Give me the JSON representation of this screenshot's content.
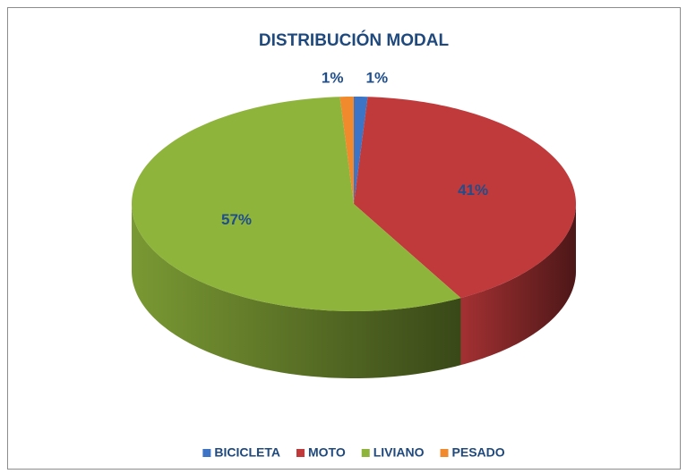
{
  "chart_data": {
    "type": "pie",
    "title": "DISTRIBUCIÓN MODAL",
    "categories": [
      "BICICLETA",
      "MOTO",
      "LIVIANO",
      "PESADO"
    ],
    "values": [
      1,
      41,
      57,
      1
    ],
    "value_labels": [
      "1%",
      "41%",
      "57%",
      "1%"
    ],
    "colors": [
      "#3d74c6",
      "#c0393b",
      "#8fb43c",
      "#f08a2c"
    ],
    "legend": "bottom"
  }
}
